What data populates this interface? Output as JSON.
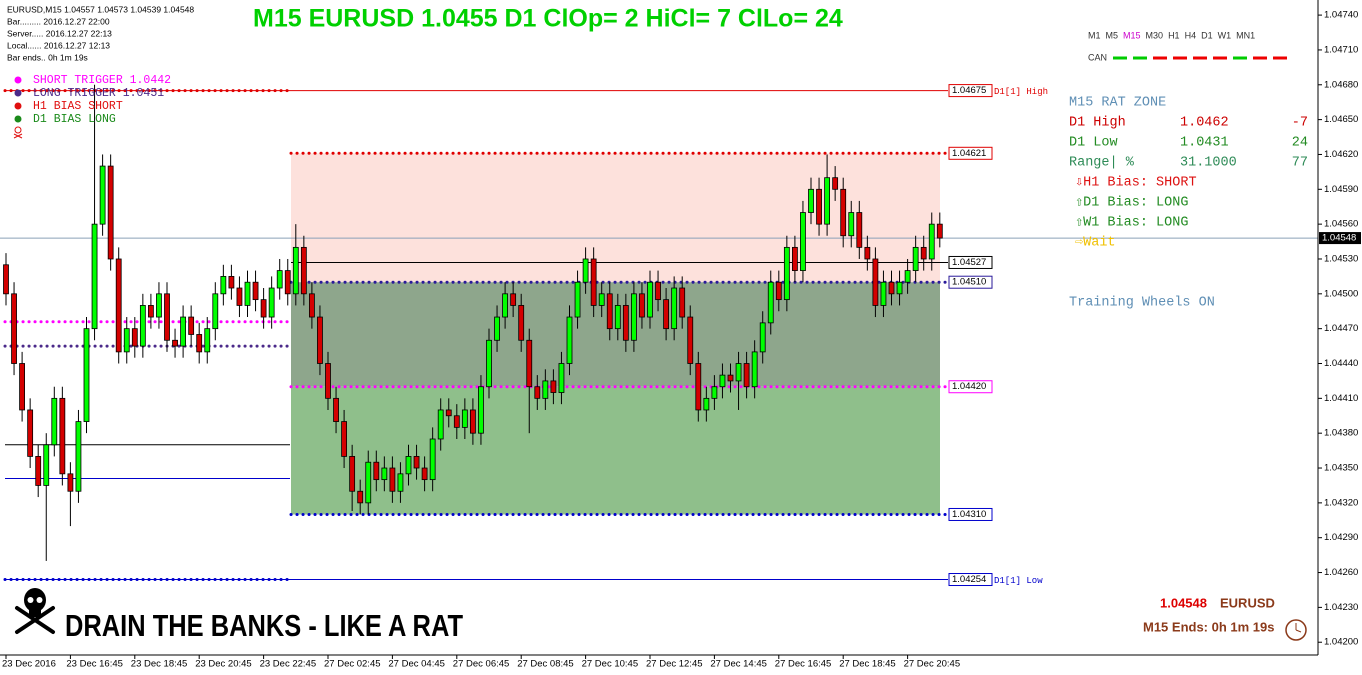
{
  "chart_data": {
    "type": "candlestick",
    "title": "M15 EURUSD 1.0455 D1 ClOp= 2 HiCl= 7 ClLo= 24",
    "up_color": "#00ff00",
    "down_color": "#d40000",
    "x_tick_labels": [
      "23 Dec 2016",
      "23 Dec 16:45",
      "23 Dec 18:45",
      "23 Dec 20:45",
      "23 Dec 22:45",
      "27 Dec 02:45",
      "27 Dec 04:45",
      "27 Dec 06:45",
      "27 Dec 08:45",
      "27 Dec 10:45",
      "27 Dec 12:45",
      "27 Dec 14:45",
      "27 Dec 16:45",
      "27 Dec 18:45",
      "27 Dec 20:45"
    ],
    "open": [
      1.04525,
      1.045,
      1.0444,
      1.044,
      1.0436,
      1.04335,
      1.0437,
      1.0441,
      1.04345,
      1.0433,
      1.0439,
      1.0447,
      1.0456,
      1.0461,
      1.0453,
      1.0445,
      1.0447,
      1.04455,
      1.0449,
      1.0448,
      1.045,
      1.0446,
      1.04455,
      1.0448,
      1.04465,
      1.0445,
      1.0447,
      1.045,
      1.04515,
      1.04505,
      1.0449,
      1.0451,
      1.04495,
      1.0448,
      1.04505,
      1.0452,
      1.045,
      1.0454,
      1.045,
      1.0448,
      1.0444,
      1.0441,
      1.0439,
      1.0436,
      1.0433,
      1.0432,
      1.04355,
      1.0434,
      1.0435,
      1.0433,
      1.04345,
      1.0436,
      1.0435,
      1.0434,
      1.04375,
      1.044,
      1.04395,
      1.04385,
      1.044,
      1.0438,
      1.0442,
      1.0446,
      1.0448,
      1.045,
      1.0449,
      1.0446,
      1.0442,
      1.0441,
      1.04425,
      1.04415,
      1.0444,
      1.0448,
      1.0451,
      1.0453,
      1.0449,
      1.045,
      1.0447,
      1.0449,
      1.0446,
      1.045,
      1.0448,
      1.0451,
      1.04495,
      1.0447,
      1.04505,
      1.0448,
      1.0444,
      1.044,
      1.0441,
      1.0442,
      1.0443,
      1.04425,
      1.0444,
      1.0442,
      1.0445,
      1.04475,
      1.0451,
      1.04495,
      1.0454,
      1.0452,
      1.0457,
      1.0459,
      1.0456,
      1.046,
      1.0459,
      1.0455,
      1.0457,
      1.0454,
      1.0453,
      1.0449,
      1.0451,
      1.045,
      1.0451,
      1.0452,
      1.0454,
      1.0453,
      1.0456
    ],
    "high": [
      1.04535,
      1.0451,
      1.0445,
      1.0441,
      1.0437,
      1.0438,
      1.0442,
      1.0442,
      1.04355,
      1.044,
      1.0448,
      1.0468,
      1.0462,
      1.0462,
      1.0454,
      1.0448,
      1.0448,
      1.045,
      1.045,
      1.0451,
      1.0451,
      1.0447,
      1.0449,
      1.0449,
      1.04475,
      1.0448,
      1.0451,
      1.04525,
      1.04525,
      1.04515,
      1.0452,
      1.0452,
      1.04505,
      1.04515,
      1.0453,
      1.0453,
      1.0456,
      1.0455,
      1.0451,
      1.0449,
      1.0445,
      1.0442,
      1.044,
      1.0437,
      1.0434,
      1.04365,
      1.04365,
      1.0436,
      1.0436,
      1.04355,
      1.0437,
      1.0437,
      1.0436,
      1.04385,
      1.0441,
      1.0441,
      1.04405,
      1.0441,
      1.0441,
      1.0443,
      1.0447,
      1.0449,
      1.0451,
      1.0451,
      1.045,
      1.0447,
      1.0443,
      1.04435,
      1.04435,
      1.0445,
      1.0449,
      1.0452,
      1.0454,
      1.0454,
      1.0451,
      1.0451,
      1.045,
      1.045,
      1.0451,
      1.0451,
      1.0452,
      1.0452,
      1.04505,
      1.04515,
      1.04515,
      1.0449,
      1.0445,
      1.0442,
      1.0443,
      1.0444,
      1.0444,
      1.0445,
      1.0445,
      1.0446,
      1.04485,
      1.0452,
      1.0452,
      1.0455,
      1.0455,
      1.0458,
      1.046,
      1.046,
      1.0462,
      1.0461,
      1.046,
      1.0458,
      1.0458,
      1.0455,
      1.0454,
      1.0452,
      1.0452,
      1.0452,
      1.0453,
      1.0455,
      1.0455,
      1.0457,
      1.0457
    ],
    "low": [
      1.0449,
      1.0443,
      1.0439,
      1.0435,
      1.04325,
      1.0427,
      1.0436,
      1.04335,
      1.043,
      1.0432,
      1.0438,
      1.0446,
      1.0455,
      1.0452,
      1.0444,
      1.0444,
      1.04445,
      1.04445,
      1.0447,
      1.0447,
      1.0445,
      1.04445,
      1.04445,
      1.04455,
      1.0444,
      1.0444,
      1.0446,
      1.0449,
      1.04495,
      1.0448,
      1.0448,
      1.04485,
      1.0447,
      1.0447,
      1.04495,
      1.0449,
      1.0449,
      1.0449,
      1.0447,
      1.0443,
      1.044,
      1.0438,
      1.0435,
      1.04313,
      1.0431,
      1.0431,
      1.0433,
      1.0433,
      1.0432,
      1.0432,
      1.04335,
      1.0434,
      1.0433,
      1.0433,
      1.04365,
      1.04385,
      1.04375,
      1.04375,
      1.0437,
      1.0437,
      1.0441,
      1.0445,
      1.0447,
      1.0448,
      1.0445,
      1.0438,
      1.044,
      1.044,
      1.04405,
      1.04405,
      1.0443,
      1.0447,
      1.045,
      1.0448,
      1.0448,
      1.0446,
      1.0446,
      1.0445,
      1.0445,
      1.0447,
      1.0447,
      1.04485,
      1.0446,
      1.0446,
      1.0447,
      1.0443,
      1.0439,
      1.0439,
      1.044,
      1.0441,
      1.04415,
      1.044,
      1.0441,
      1.0441,
      1.0444,
      1.04465,
      1.04485,
      1.04485,
      1.0451,
      1.0451,
      1.0456,
      1.0455,
      1.0455,
      1.0458,
      1.0454,
      1.0454,
      1.0453,
      1.0452,
      1.0448,
      1.0448,
      1.0449,
      1.0449,
      1.045,
      1.0451,
      1.0452,
      1.0452,
      1.0454
    ],
    "close": [
      1.045,
      1.0444,
      1.044,
      1.0436,
      1.04335,
      1.0437,
      1.0441,
      1.04345,
      1.0433,
      1.0439,
      1.0447,
      1.0456,
      1.0461,
      1.0453,
      1.0445,
      1.0447,
      1.04455,
      1.0449,
      1.0448,
      1.045,
      1.0446,
      1.04455,
      1.0448,
      1.04465,
      1.0445,
      1.0447,
      1.045,
      1.04515,
      1.04505,
      1.0449,
      1.0451,
      1.04495,
      1.0448,
      1.04505,
      1.0452,
      1.045,
      1.0454,
      1.045,
      1.0448,
      1.0444,
      1.0441,
      1.0439,
      1.0436,
      1.0433,
      1.0432,
      1.04355,
      1.0434,
      1.0435,
      1.0433,
      1.04345,
      1.0436,
      1.0435,
      1.0434,
      1.04375,
      1.044,
      1.04395,
      1.04385,
      1.044,
      1.0438,
      1.0442,
      1.0446,
      1.0448,
      1.045,
      1.0449,
      1.0446,
      1.0442,
      1.0441,
      1.04425,
      1.04415,
      1.0444,
      1.0448,
      1.0451,
      1.0453,
      1.0449,
      1.045,
      1.0447,
      1.0449,
      1.0446,
      1.045,
      1.0448,
      1.0451,
      1.04495,
      1.0447,
      1.04505,
      1.0448,
      1.0444,
      1.044,
      1.0441,
      1.0442,
      1.0443,
      1.04425,
      1.0444,
      1.0442,
      1.0445,
      1.04475,
      1.0451,
      1.04495,
      1.0454,
      1.0452,
      1.0457,
      1.0459,
      1.0456,
      1.046,
      1.0459,
      1.0455,
      1.0457,
      1.0454,
      1.0453,
      1.0449,
      1.0451,
      1.045,
      1.0451,
      1.0452,
      1.0454,
      1.0453,
      1.0456,
      1.04548
    ],
    "ylim": [
      1.04189,
      1.04753
    ],
    "yticks": [
      {
        "value": 1.0474,
        "label": "1.04740"
      },
      {
        "value": 1.0471,
        "label": "1.04710"
      },
      {
        "value": 1.0468,
        "label": "1.04680"
      },
      {
        "value": 1.0465,
        "label": "1.04650"
      },
      {
        "value": 1.0462,
        "label": "1.04620"
      },
      {
        "value": 1.0459,
        "label": "1.04590"
      },
      {
        "value": 1.0456,
        "label": "1.04560"
      },
      {
        "value": 1.0453,
        "label": "1.04530"
      },
      {
        "value": 1.045,
        "label": "1.04500"
      },
      {
        "value": 1.0447,
        "label": "1.04470"
      },
      {
        "value": 1.0444,
        "label": "1.04440"
      },
      {
        "value": 1.0441,
        "label": "1.04410"
      },
      {
        "value": 1.0438,
        "label": "1.04380"
      },
      {
        "value": 1.0435,
        "label": "1.04350"
      },
      {
        "value": 1.0432,
        "label": "1.04320"
      },
      {
        "value": 1.0429,
        "label": "1.04290"
      },
      {
        "value": 1.0426,
        "label": "1.04260"
      },
      {
        "value": 1.0423,
        "label": "1.04230"
      },
      {
        "value": 1.042,
        "label": "1.04200"
      }
    ],
    "last_price": {
      "value": 1.04548,
      "label": "1.04548"
    },
    "zones": [
      {
        "top": 1.04621,
        "bottom": 1.0451,
        "color": "#fde1dc"
      },
      {
        "top": 1.0451,
        "bottom": 1.0442,
        "color": "#8ea68c"
      },
      {
        "top": 1.0442,
        "bottom": 1.0431,
        "color": "#8fbf8b"
      }
    ],
    "levels": [
      {
        "value": 1.04675,
        "label": "1.04675",
        "tag": "D1[1] High",
        "color": "#e00000",
        "style": "solid"
      },
      {
        "value": 1.04621,
        "label": "1.04621",
        "color": "#e00000",
        "style": "dotted"
      },
      {
        "value": 1.04527,
        "label": "1.04527",
        "color": "#000000",
        "style": "solid"
      },
      {
        "value": 1.0451,
        "label": "1.04510",
        "color": "#2a1a9a",
        "style": "dotted"
      },
      {
        "value": 1.0442,
        "label": "1.04420",
        "color": "#ff00ff",
        "style": "dotted"
      },
      {
        "value": 1.0431,
        "label": "1.04310",
        "color": "#0000cc",
        "style": "dotted"
      },
      {
        "value": 1.04254,
        "label": "1.04254",
        "tag": "D1[1] Low",
        "color": "#0000cc",
        "style": "solid"
      },
      {
        "value": 1.04476,
        "color": "#ff00ff",
        "style": "dotted"
      },
      {
        "value": 1.04455,
        "color": "#4b2a8a",
        "style": "dotted"
      },
      {
        "value": 1.0437,
        "color": "#000000",
        "style": "solid"
      },
      {
        "value": 1.04341,
        "color": "#0000cc",
        "style": "solid"
      }
    ],
    "legend": [
      {
        "name": "SHORT TRIGGER 1.0442",
        "color": "#ff00ff"
      },
      {
        "name": "LONG TRIGGER  1.0451",
        "color": "#4b2a8a"
      },
      {
        "name": "H1 BIAS SHORT",
        "color": "#e01010"
      },
      {
        "name": "D1 BIAS LONG",
        "color": "#1a8a1a"
      }
    ]
  },
  "info": [
    "EURUSD,M15  1.04557 1.04573 1.04539 1.04548",
    "Bar......... 2016.12.27 22:00",
    "Server..... 2016.12.27 22:13",
    "Local...... 2016.12.27 12:13",
    "Bar ends.. 0h 1m 19s"
  ],
  "timeframes": [
    {
      "label": "M1",
      "color": "#333333"
    },
    {
      "label": "M5",
      "color": "#333333"
    },
    {
      "label": "M15",
      "color": "#cc00cc"
    },
    {
      "label": "M30",
      "color": "#333333"
    },
    {
      "label": "H1",
      "color": "#333333"
    },
    {
      "label": "H4",
      "color": "#333333"
    },
    {
      "label": "D1",
      "color": "#333333"
    },
    {
      "label": "W1",
      "color": "#333333"
    },
    {
      "label": "MN1",
      "color": "#333333"
    }
  ],
  "can": {
    "label": "CAN",
    "colors": [
      "#00cc00",
      "#00cc00",
      "#ee0000",
      "#ee0000",
      "#ee0000",
      "#ee0000",
      "#00cc00",
      "#ee0000",
      "#ee0000"
    ]
  },
  "panel": {
    "title": "M15 RAT ZONE",
    "rows": [
      {
        "cells": [
          "D1 High",
          "1.0462",
          "-7"
        ],
        "color": "#cc0000"
      },
      {
        "cells": [
          "D1 Low",
          "1.0431",
          "24"
        ],
        "color": "#228b22"
      },
      {
        "cells": [
          "Range| %",
          "31.1000",
          "77"
        ],
        "color": "#2e8b57"
      }
    ],
    "bias": [
      {
        "text": "⇩H1 Bias: SHORT",
        "color": "#dd1111"
      },
      {
        "text": "⇧D1 Bias: LONG",
        "color": "#228b22"
      },
      {
        "text": "⇧W1 Bias: LONG",
        "color": "#228b22"
      },
      {
        "text": "⇨Wait",
        "color": "#f0c000"
      }
    ],
    "note": "Training Wheels ON"
  },
  "footer": {
    "slogan": "DRAIN THE BANKS - LIKE A RAT",
    "symbol": "EURUSD",
    "bar_ends": "M15 Ends: 0h 1m 19s"
  }
}
